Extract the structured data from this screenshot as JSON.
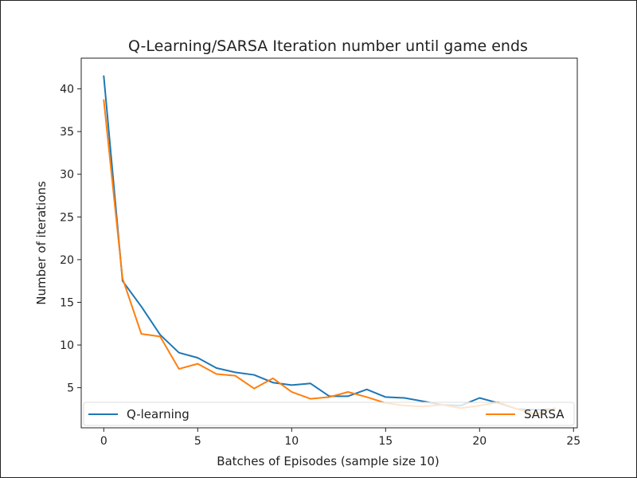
{
  "chart_data": {
    "type": "line",
    "title": "Q-Learning/SARSA Iteration number until game ends",
    "xlabel": "Batches of Episodes (sample size 10)",
    "ylabel": "Number of iterations",
    "xlim": [
      -1.2,
      25.2
    ],
    "ylim": [
      0.3,
      43.6
    ],
    "xticks": [
      0,
      5,
      10,
      15,
      20,
      25
    ],
    "yticks": [
      5,
      10,
      15,
      20,
      25,
      30,
      35,
      40
    ],
    "grid": false,
    "legend_position": "bottom",
    "x": [
      0,
      1,
      2,
      3,
      4,
      5,
      6,
      7,
      8,
      9,
      10,
      11,
      12,
      13,
      14,
      15,
      16,
      17,
      18,
      19,
      20,
      21,
      22,
      23,
      24
    ],
    "series": [
      {
        "name": "Q-learning",
        "color": "#1f77b4",
        "values": [
          41.5,
          17.5,
          14.5,
          11.2,
          9.1,
          8.5,
          7.3,
          6.8,
          6.5,
          5.6,
          5.3,
          5.5,
          4.0,
          4.0,
          4.8,
          3.9,
          3.8,
          3.4,
          3.0,
          2.9,
          3.8,
          3.2,
          2.5,
          2.4,
          2.5
        ]
      },
      {
        "name": "SARSA",
        "color": "#ff7f0e",
        "values": [
          38.7,
          17.8,
          11.3,
          11.0,
          7.2,
          7.8,
          6.6,
          6.4,
          4.9,
          6.1,
          4.5,
          3.7,
          3.9,
          4.5,
          3.9,
          3.2,
          2.9,
          2.8,
          3.0,
          2.6,
          2.9,
          3.3,
          2.5,
          1.9,
          2.6
        ]
      }
    ]
  }
}
